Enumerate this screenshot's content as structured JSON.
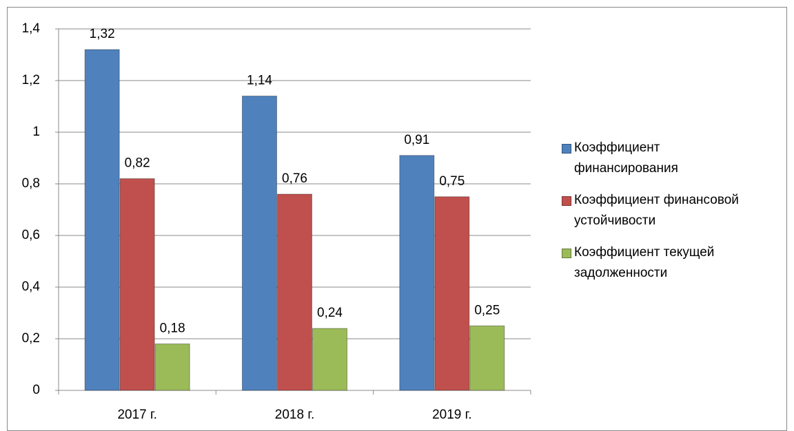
{
  "chart_data": {
    "type": "bar",
    "categories": [
      "2017 г.",
      "2018 г.",
      "2019 г."
    ],
    "series": [
      {
        "name": "Коэффициент финансирования",
        "color": "#4f81bd",
        "values": [
          1.32,
          1.14,
          0.91
        ],
        "value_labels": [
          "1,32",
          "1,14",
          "0,91"
        ]
      },
      {
        "name": "Коэффициент финансовой устойчивости",
        "color": "#c0504d",
        "values": [
          0.82,
          0.76,
          0.75
        ],
        "value_labels": [
          "0,82",
          "0,76",
          "0,75"
        ]
      },
      {
        "name": "Коэффициент текущей задолженности",
        "color": "#9bbb59",
        "values": [
          0.18,
          0.24,
          0.25
        ],
        "value_labels": [
          "0,18",
          "0,24",
          "0,25"
        ]
      }
    ],
    "ylim": [
      0,
      1.4
    ],
    "yticks": [
      0,
      {
        "value": 0.2,
        "label": "0,2"
      },
      {
        "value": 0.4,
        "label": "0,4"
      },
      {
        "value": 0.6,
        "label": "0,6"
      },
      {
        "value": 0.8,
        "label": "0,8"
      },
      1,
      {
        "value": 1.2,
        "label": "1,2"
      },
      {
        "value": 1.4,
        "label": "1,4"
      }
    ],
    "grid": true,
    "legend": "right"
  }
}
